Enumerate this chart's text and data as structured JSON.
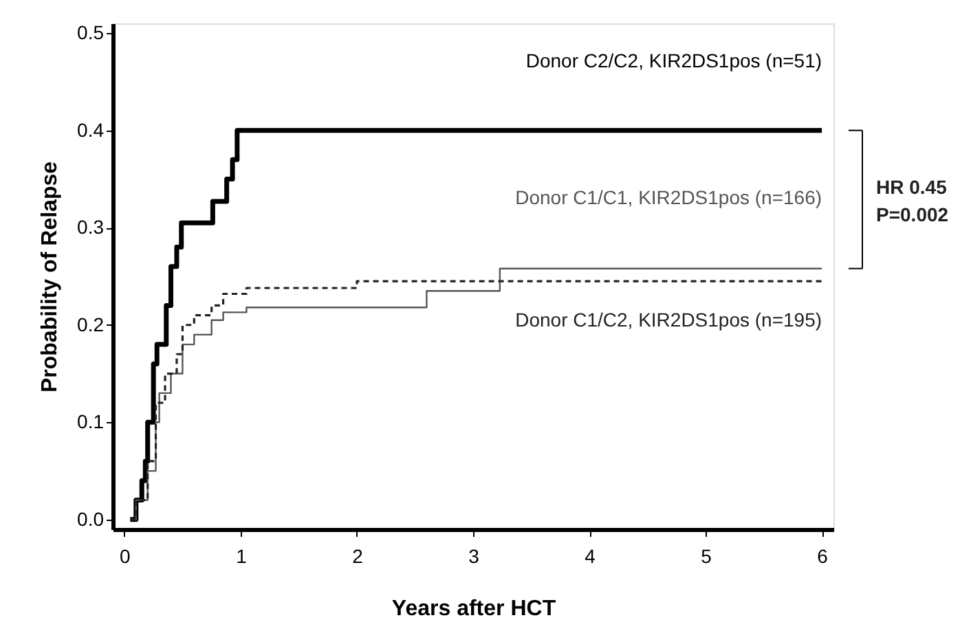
{
  "chart_data": {
    "type": "step",
    "xlabel": "Years after HCT",
    "ylabel": "Probability of Relapse",
    "xlim": [
      -0.1,
      6.1
    ],
    "xticks": [
      0,
      1,
      2,
      3,
      4,
      5,
      6
    ],
    "ylim": [
      -0.01,
      0.51
    ],
    "yticks": [
      {
        "value": 0,
        "label": "0.0"
      },
      0.1,
      0.2,
      0.3,
      0.4,
      0.5
    ],
    "grid": false,
    "marker": "none",
    "series": [
      {
        "name": "Donor C2/C2, KIR2DS1pos (n=51)",
        "color": "#000000",
        "line_style": "solid",
        "x": [
          0.05,
          0.1,
          0.15,
          0.18,
          0.2,
          0.25,
          0.28,
          0.32,
          0.36,
          0.4,
          0.45,
          0.49,
          0.76,
          0.88,
          0.93,
          0.97,
          6
        ],
        "values": [
          0,
          0.02,
          0.04,
          0.06,
          0.1,
          0.16,
          0.18,
          0.18,
          0.22,
          0.26,
          0.28,
          0.305,
          0.327,
          0.35,
          0.37,
          0.4,
          0.4
        ]
      },
      {
        "name": "Donor C1/C1, KIR2DS1pos (n=166)",
        "color": "#555555",
        "line_style": "solid",
        "x": [
          0.05,
          0.1,
          0.2,
          0.27,
          0.3,
          0.4,
          0.5,
          0.6,
          0.75,
          0.85,
          1.05,
          2.6,
          3.23,
          6
        ],
        "values": [
          0,
          0.02,
          0.05,
          0.1,
          0.13,
          0.15,
          0.18,
          0.19,
          0.205,
          0.213,
          0.218,
          0.235,
          0.258,
          0.258
        ]
      },
      {
        "name": "Donor C1/C2, KIR2DS1pos (n=195)",
        "color": "#222222",
        "line_style": "dashed",
        "x": [
          0.05,
          0.1,
          0.2,
          0.27,
          0.35,
          0.45,
          0.5,
          0.6,
          0.75,
          0.85,
          1.05,
          2.0,
          6
        ],
        "values": [
          0,
          0.02,
          0.06,
          0.12,
          0.15,
          0.17,
          0.2,
          0.21,
          0.22,
          0.232,
          0.238,
          0.245,
          0.245
        ]
      }
    ],
    "annotations": [
      "HR 0.45",
      "P=0.002"
    ]
  }
}
